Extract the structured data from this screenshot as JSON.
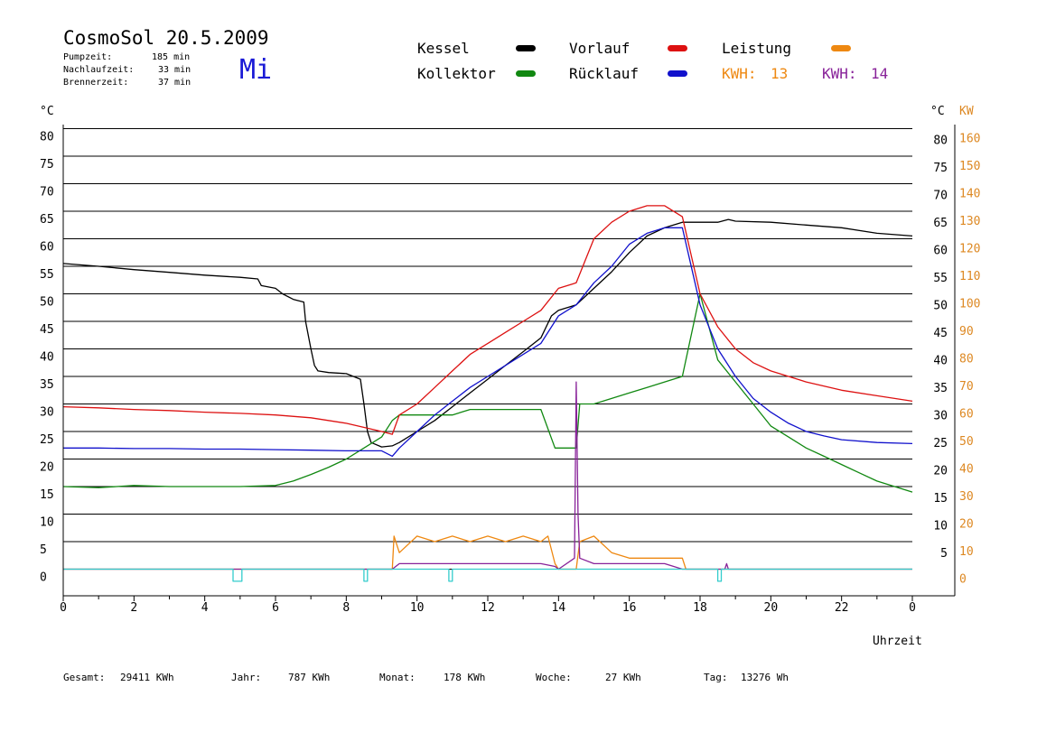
{
  "header": {
    "title": "CosmoSol 20.5.2009",
    "day": "Mi",
    "info": [
      {
        "label": "Pumpzeit:",
        "value": "185 min"
      },
      {
        "label": "Nachlaufzeit:",
        "value": "33 min"
      },
      {
        "label": "Brennerzeit:",
        "value": "37 min"
      }
    ]
  },
  "legend": {
    "kessel": "Kessel",
    "kollektor": "Kollektor",
    "vorlauf": "Vorlauf",
    "ruecklauf": "Rücklauf",
    "leistung": "Leistung",
    "kwh1_label": "KWH:",
    "kwh1_value": "13",
    "kwh2_label": "KWH:",
    "kwh2_value": "14"
  },
  "colors": {
    "kessel": "#000000",
    "kollektor": "#118811",
    "vorlauf": "#dd1111",
    "ruecklauf": "#1111cc",
    "leistung": "#ee8811",
    "leistung2": "#882299",
    "pump": "#33cccc",
    "axis_right_kw": "#dd8822"
  },
  "footer": {
    "gesamt_label": "Gesamt:",
    "gesamt_value": "29411 KWh",
    "jahr_label": "Jahr:",
    "jahr_value": "787 KWh",
    "monat_label": "Monat:",
    "monat_value": "178 KWh",
    "woche_label": "Woche:",
    "woche_value": "27 KWh",
    "tag_label": "Tag:",
    "tag_value": "13276 Wh"
  },
  "chart_data": {
    "type": "line",
    "xlabel": "Uhrzeit",
    "ylabel_left": "°C",
    "ylabel_right": "°C",
    "ylabel_right2": "KW",
    "xlim": [
      0,
      24
    ],
    "ylim": [
      -5,
      85
    ],
    "x_ticks": [
      "0",
      "2",
      "4",
      "6",
      "8",
      "10",
      "12",
      "14",
      "16",
      "18",
      "20",
      "22",
      "0"
    ],
    "y_ticks_left": [
      "80",
      "75",
      "70",
      "65",
      "60",
      "55",
      "50",
      "45",
      "40",
      "35",
      "30",
      "25",
      "20",
      "15",
      "10",
      "5",
      "0"
    ],
    "y_ticks_right": [
      "80",
      "75",
      "70",
      "65",
      "60",
      "55",
      "50",
      "45",
      "40",
      "35",
      "30",
      "25",
      "20",
      "15",
      "10",
      "5"
    ],
    "y_ticks_kw": [
      "160",
      "150",
      "140",
      "130",
      "120",
      "110",
      "100",
      "90",
      "80",
      "70",
      "60",
      "50",
      "40",
      "30",
      "20",
      "10",
      "0"
    ],
    "grid": true,
    "series": [
      {
        "name": "Kessel",
        "x": [
          0,
          1,
          2,
          3,
          4,
          5,
          5.5,
          5.6,
          6,
          6.2,
          6.5,
          6.8,
          6.85,
          7,
          7.1,
          7.2,
          7.5,
          8,
          8.2,
          8.4,
          8.5,
          8.6,
          8.7,
          9,
          9.3,
          9.5,
          10,
          10.5,
          11,
          11.5,
          12,
          12.5,
          13,
          13.5,
          13.8,
          14,
          14.5,
          15,
          15.5,
          16,
          16.5,
          17,
          17.5,
          18,
          18.5,
          18.8,
          19,
          20,
          21,
          22,
          23,
          24
        ],
        "y": [
          55.5,
          55,
          54.4,
          53.9,
          53.4,
          53,
          52.7,
          51.5,
          51,
          50,
          49,
          48.5,
          45,
          40,
          37,
          36,
          35.7,
          35.5,
          35,
          34.5,
          30,
          25,
          23,
          22.2,
          22.4,
          23,
          25,
          27,
          29.5,
          32,
          34.5,
          37,
          39.5,
          42,
          46,
          47,
          48,
          51,
          54,
          57.5,
          60.5,
          62,
          63,
          63,
          63,
          63.5,
          63.2,
          63,
          62.5,
          62,
          61,
          60.5
        ]
      },
      {
        "name": "Kollektor",
        "x": [
          0,
          1,
          2,
          3,
          4,
          5,
          6,
          6.5,
          7,
          7.5,
          8,
          8.5,
          9,
          9.3,
          9.5,
          10,
          10.5,
          11,
          11.5,
          12,
          12.5,
          13,
          13.5,
          13.9,
          14,
          14.5,
          14.6,
          15,
          15.5,
          16,
          16.5,
          17,
          17.5,
          18,
          18.5,
          19,
          19.5,
          20,
          20.5,
          21,
          21.5,
          22,
          22.5,
          23,
          23.5,
          24
        ],
        "y": [
          15,
          14.8,
          15.2,
          15,
          15,
          15,
          15.2,
          16,
          17.2,
          18.5,
          20,
          22,
          24,
          27,
          28,
          28,
          28,
          28,
          29,
          29,
          29,
          29,
          29,
          22,
          22,
          22,
          30,
          30,
          31,
          32,
          33,
          34,
          35,
          50,
          38,
          34,
          30,
          26,
          24,
          22,
          20.5,
          19,
          17.5,
          16,
          15,
          14
        ]
      },
      {
        "name": "Vorlauf",
        "x": [
          0,
          1,
          2,
          3,
          4,
          5,
          6,
          7,
          8,
          9,
          9.3,
          9.5,
          10,
          10.5,
          11,
          11.5,
          12,
          12.5,
          13,
          13.5,
          14,
          14.5,
          15,
          15.5,
          16,
          16.5,
          17,
          17.5,
          18,
          18.5,
          19,
          19.5,
          20,
          21,
          22,
          23,
          24
        ],
        "y": [
          29.5,
          29.3,
          29,
          28.8,
          28.5,
          28.3,
          28,
          27.5,
          26.5,
          25,
          24.5,
          28,
          30,
          33,
          36,
          39,
          41,
          43,
          45,
          47,
          51,
          52,
          60,
          63,
          65,
          66,
          66,
          64,
          50,
          44,
          40,
          37.5,
          36,
          34,
          32.5,
          31.5,
          30.5
        ]
      },
      {
        "name": "Rücklauf",
        "x": [
          0,
          1,
          2,
          3,
          4,
          5,
          6,
          7,
          8,
          9,
          9.3,
          9.5,
          10,
          10.5,
          11,
          11.5,
          12,
          12.5,
          13,
          13.5,
          14,
          14.5,
          15,
          15.5,
          16,
          16.5,
          17,
          17.5,
          18,
          18.5,
          19,
          19.5,
          20,
          20.5,
          21,
          21.5,
          22,
          23,
          24
        ],
        "y": [
          22,
          22,
          21.9,
          21.9,
          21.8,
          21.8,
          21.7,
          21.6,
          21.5,
          21.5,
          20.5,
          22,
          25,
          28,
          30.5,
          33,
          35,
          37,
          39,
          41,
          46,
          48,
          52,
          55,
          59,
          61,
          62,
          62,
          48,
          40,
          35,
          31,
          28.5,
          26.5,
          25,
          24.2,
          23.5,
          23,
          22.8
        ]
      },
      {
        "name": "Leistung",
        "x": [
          0,
          9.3,
          9.35,
          9.5,
          10,
          10.5,
          11,
          11.5,
          12,
          12.5,
          13,
          13.5,
          13.7,
          13.9,
          14,
          14.5,
          14.6,
          15,
          15.5,
          16,
          16.5,
          17,
          17.5,
          17.6,
          24
        ],
        "y": [
          0,
          0,
          6,
          3,
          6,
          5,
          6,
          5,
          6,
          5,
          6,
          5,
          6,
          1,
          0,
          0,
          5,
          6,
          3,
          2,
          2,
          2,
          2,
          0,
          0
        ]
      },
      {
        "name": "Leistung2",
        "x": [
          0,
          9.3,
          9.5,
          10,
          10.5,
          11,
          11.5,
          12,
          12.5,
          13,
          13.5,
          13.9,
          14,
          14.45,
          14.5,
          14.55,
          14.6,
          15,
          15.5,
          16,
          16.5,
          17,
          17.5,
          18.7,
          18.75,
          18.8,
          24
        ],
        "y": [
          0,
          0,
          1,
          1,
          1,
          1,
          1,
          1,
          1,
          1,
          1,
          0.5,
          0,
          2,
          34,
          10,
          2,
          1,
          1,
          1,
          1,
          1,
          0,
          0,
          1,
          0,
          0
        ]
      },
      {
        "name": "Pumpe",
        "x": [
          0,
          4.8,
          4.8,
          5.05,
          5.05,
          8.5,
          8.5,
          8.6,
          8.6,
          10.9,
          10.9,
          11.0,
          11.0,
          18.5,
          18.5,
          18.6,
          18.6,
          24
        ],
        "y": [
          0,
          0,
          -2.2,
          -2.2,
          0,
          0,
          -2.2,
          -2.2,
          0,
          0,
          -2.2,
          -2.2,
          0,
          0,
          -2.2,
          -2.2,
          0,
          0
        ]
      }
    ]
  }
}
